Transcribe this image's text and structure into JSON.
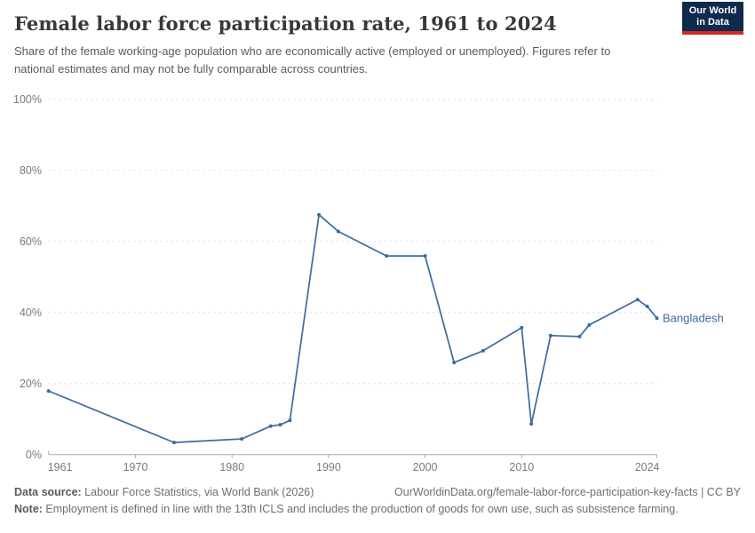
{
  "header": {
    "title": "Female labor force participation rate, 1961 to 2024",
    "subtitle": "Share of the female working-age population who are economically active (employed or unemployed). Figures refer to national estimates and may not be fully comparable across countries.",
    "logo": {
      "line1": "Our World",
      "line2": "in Data",
      "bg_color": "#102a4e",
      "stripe_color": "#d12b27"
    }
  },
  "footer": {
    "datasource_label": "Data source:",
    "datasource_value": " Labour Force Statistics, via World Bank (2026)",
    "credit": "OurWorldinData.org/female-labor-force-participation-key-facts | CC BY",
    "note_label": "Note:",
    "note_value": " Employment is defined in line with the 13th ICLS and includes the production of goods for own use, such as subsistence farming."
  },
  "chart_data": {
    "type": "line",
    "title": "Female labor force participation rate, 1961 to 2024",
    "entity_label": "Bangladesh",
    "series": [
      {
        "name": "Bangladesh",
        "points": [
          {
            "year": 1961,
            "value": 17.9
          },
          {
            "year": 1974,
            "value": 3.4
          },
          {
            "year": 1981,
            "value": 4.4
          },
          {
            "year": 1984,
            "value": 8.0
          },
          {
            "year": 1985,
            "value": 8.4
          },
          {
            "year": 1986,
            "value": 9.6
          },
          {
            "year": 1989,
            "value": 67.5
          },
          {
            "year": 1991,
            "value": 62.8
          },
          {
            "year": 1996,
            "value": 55.9
          },
          {
            "year": 2000,
            "value": 55.9
          },
          {
            "year": 2003,
            "value": 25.9
          },
          {
            "year": 2006,
            "value": 29.2
          },
          {
            "year": 2010,
            "value": 35.7
          },
          {
            "year": 2011,
            "value": 8.6
          },
          {
            "year": 2013,
            "value": 33.5
          },
          {
            "year": 2016,
            "value": 33.2
          },
          {
            "year": 2017,
            "value": 36.5
          },
          {
            "year": 2022,
            "value": 43.6
          },
          {
            "year": 2023,
            "value": 41.7
          },
          {
            "year": 2024,
            "value": 38.4
          }
        ]
      }
    ],
    "x_domain": [
      1961,
      2024
    ],
    "ylim": [
      0,
      100
    ],
    "yticks": [
      {
        "value": 0,
        "label": "0%"
      },
      {
        "value": 20,
        "label": "20%"
      },
      {
        "value": 40,
        "label": "40%"
      },
      {
        "value": 60,
        "label": "60%"
      },
      {
        "value": 80,
        "label": "80%"
      },
      {
        "value": 100,
        "label": "100%"
      }
    ],
    "xticks": [
      1961,
      1970,
      1980,
      1990,
      2000,
      2010,
      2024
    ],
    "grid": "dashed",
    "legend_position": "end-of-line",
    "line_color": "#3d6a9f",
    "grid_color": "#dcdcdc",
    "axis_color": "#a8a8a8",
    "tick_label_color": "#7a7a7a"
  }
}
